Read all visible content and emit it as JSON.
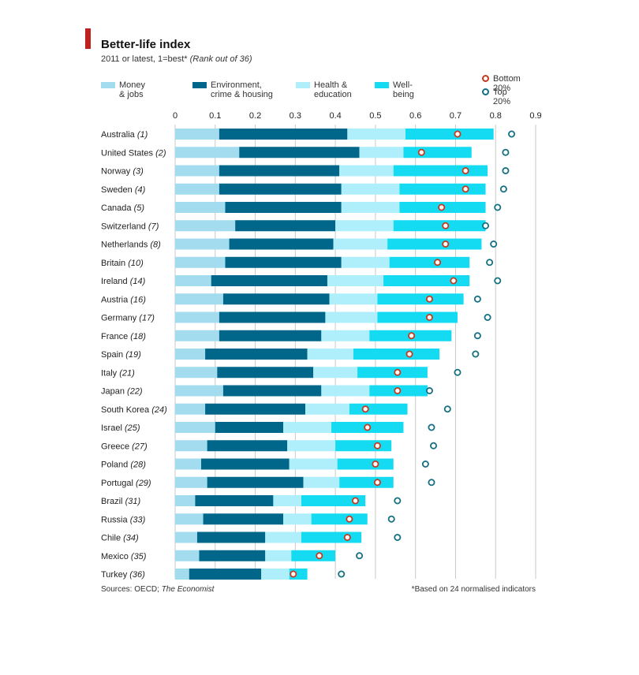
{
  "title": "Better-life index",
  "subtitle": "2011 or latest, 1=best*",
  "subtitle_note": "(Rank out of 36)",
  "footer_sources_prefix": "Sources: OECD; ",
  "footer_sources_italic": "The Economist",
  "footer_note": "*Based on 24 normalised indicators",
  "colors": {
    "money_jobs": "#a4dcef",
    "environment": "#00678a",
    "health_education": "#aeeffb",
    "well_being": "#15dbf2",
    "bottom_ring": "#c43a1e",
    "top_ring": "#136f82",
    "grid": "#c9c9c9"
  },
  "legend": {
    "money_jobs": "Money & jobs",
    "environment": "Environment,\ncrime & housing",
    "health_education": "Health &\neducation",
    "well_being": "Well-being",
    "bottom": "Bottom 20%",
    "top": "Top 20%"
  },
  "chart_data": {
    "type": "bar",
    "stacked": true,
    "orientation": "horizontal",
    "x_ticks": [
      "0",
      "0.1",
      "0.2",
      "0.3",
      "0.4",
      "0.5",
      "0.6",
      "0.7",
      "0.8",
      "0.9"
    ],
    "xlim": [
      0,
      0.9
    ],
    "grid": true,
    "legend_position": "top",
    "categories": [
      "Australia",
      "United States",
      "Norway",
      "Sweden",
      "Canada",
      "Switzerland",
      "Netherlands",
      "Britain",
      "Ireland",
      "Austria",
      "Germany",
      "France",
      "Spain",
      "Italy",
      "Japan",
      "South Korea",
      "Israel",
      "Greece",
      "Poland",
      "Portugal",
      "Brazil",
      "Russia",
      "Chile",
      "Mexico",
      "Turkey"
    ],
    "ranks": [
      "(1)",
      "(2)",
      "(3)",
      "(4)",
      "(5)",
      "(7)",
      "(8)",
      "(10)",
      "(14)",
      "(16)",
      "(17)",
      "(18)",
      "(19)",
      "(21)",
      "(22)",
      "(24)",
      "(25)",
      "(27)",
      "(28)",
      "(29)",
      "(31)",
      "(33)",
      "(34)",
      "(35)",
      "(36)"
    ],
    "series": [
      {
        "name": "Money & jobs",
        "values": [
          0.11,
          0.16,
          0.11,
          0.11,
          0.125,
          0.15,
          0.135,
          0.125,
          0.09,
          0.12,
          0.11,
          0.11,
          0.075,
          0.105,
          0.12,
          0.075,
          0.1,
          0.08,
          0.065,
          0.08,
          0.05,
          0.07,
          0.055,
          0.06,
          0.035
        ]
      },
      {
        "name": "Environment, crime & housing",
        "values": [
          0.32,
          0.3,
          0.3,
          0.305,
          0.29,
          0.25,
          0.26,
          0.29,
          0.29,
          0.265,
          0.265,
          0.255,
          0.255,
          0.24,
          0.245,
          0.25,
          0.17,
          0.2,
          0.22,
          0.24,
          0.195,
          0.2,
          0.17,
          0.165,
          0.18
        ]
      },
      {
        "name": "Health & education",
        "values": [
          0.145,
          0.11,
          0.135,
          0.145,
          0.145,
          0.145,
          0.135,
          0.12,
          0.14,
          0.12,
          0.13,
          0.12,
          0.115,
          0.11,
          0.12,
          0.11,
          0.12,
          0.12,
          0.12,
          0.09,
          0.07,
          0.07,
          0.09,
          0.065,
          0.07
        ]
      },
      {
        "name": "Well-being",
        "values": [
          0.22,
          0.17,
          0.235,
          0.215,
          0.215,
          0.23,
          0.235,
          0.2,
          0.215,
          0.215,
          0.2,
          0.205,
          0.215,
          0.175,
          0.145,
          0.145,
          0.18,
          0.14,
          0.14,
          0.135,
          0.16,
          0.14,
          0.15,
          0.11,
          0.045
        ]
      }
    ],
    "bottom_20": [
      0.705,
      0.615,
      0.725,
      0.725,
      0.665,
      0.675,
      0.675,
      0.655,
      0.695,
      0.635,
      0.635,
      0.59,
      0.585,
      0.555,
      0.555,
      0.475,
      0.48,
      0.505,
      0.5,
      0.505,
      0.45,
      0.435,
      0.43,
      0.36,
      0.295
    ],
    "top_20": [
      0.84,
      0.825,
      0.825,
      0.82,
      0.805,
      0.775,
      0.795,
      0.785,
      0.805,
      0.755,
      0.78,
      0.755,
      0.75,
      0.705,
      0.635,
      0.68,
      0.64,
      0.645,
      0.625,
      0.64,
      0.555,
      0.54,
      0.555,
      0.46,
      0.415
    ]
  }
}
